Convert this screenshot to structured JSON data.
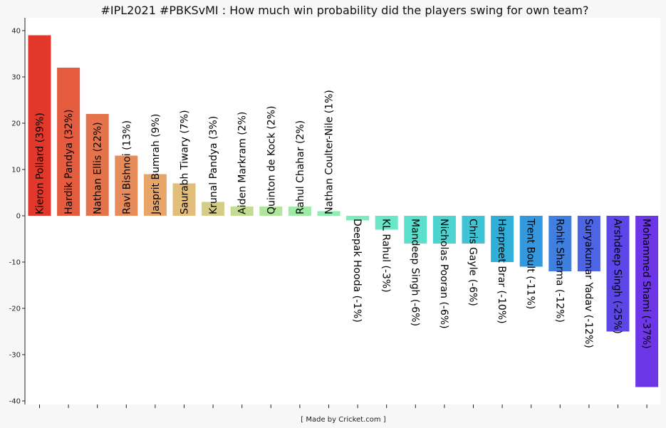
{
  "chart_data": {
    "type": "bar",
    "title": "#IPL2021  #PBKSvMI : How much win probability did the players swing for own team?",
    "xlabel": "[ Made by Cricket.com ]",
    "ylabel": "",
    "ylim": [
      -40,
      42
    ],
    "yticks": [
      -40,
      -30,
      -20,
      -10,
      0,
      10,
      20,
      30,
      40
    ],
    "categories": [
      "Kieron Pollard (39%)",
      "Hardik Pandya (32%)",
      "Nathan Ellis (22%)",
      "Ravi Bishnoi (13%)",
      "Jasprit Bumrah (9%)",
      "Saurabh Tiwary (7%)",
      "Krunal Pandya (3%)",
      "Aiden Markram (2%)",
      "Quinton de Kock (2%)",
      "Rahul Chahar (2%)",
      "Nathan Coulter-Nile (1%)",
      "Deepak Hooda (-1%)",
      "KL Rahul (-3%)",
      "Mandeep Singh (-6%)",
      "Nicholas Pooran (-6%)",
      "Chris Gayle (-6%)",
      "Harpreet Brar (-10%)",
      "Trent Boult (-11%)",
      "Rohit Sharma (-12%)",
      "Suryakumar Yadav (-12%)",
      "Arshdeep Singh (-25%)",
      "Mohammed Shami (-37%)"
    ],
    "values": [
      39,
      32,
      22,
      13,
      9,
      7,
      3,
      2,
      2,
      2,
      1,
      -1,
      -3,
      -6,
      -6,
      -6,
      -10,
      -11,
      -12,
      -12,
      -25,
      -37
    ],
    "colors": [
      "#e2382b",
      "#e45b3e",
      "#e5744c",
      "#e68c5a",
      "#e8a56a",
      "#e3bd7a",
      "#d5cd87",
      "#c3dc92",
      "#b1e59c",
      "#9feaa6",
      "#8eedb0",
      "#7decbd",
      "#6ae7c6",
      "#5ddfcd",
      "#4ed3d1",
      "#3ec4d4",
      "#30b0d8",
      "#3398de",
      "#3f7fe0",
      "#4d64e3",
      "#5c47e6",
      "#6d36e6"
    ]
  }
}
